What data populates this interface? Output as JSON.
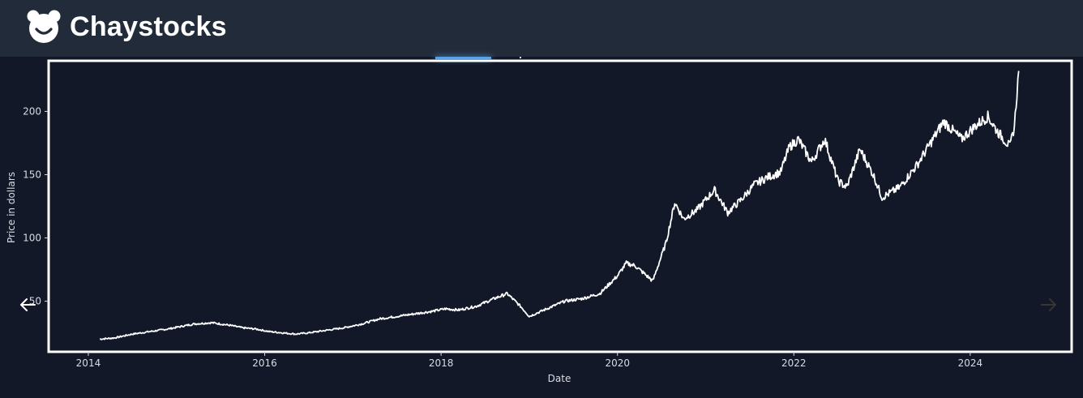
{
  "header": {
    "brand_name": "Chaystocks",
    "logo_icon": "bear-icon"
  },
  "carousel": {
    "prev_icon": "arrow-left-icon",
    "next_icon": "arrow-right-icon"
  },
  "chart_data": {
    "type": "line",
    "xlabel": "Date",
    "ylabel": "Price in dollars",
    "xlim": [
      2013.55,
      2025.15
    ],
    "ylim": [
      10,
      240
    ],
    "x_ticks": [
      2014,
      2016,
      2018,
      2020,
      2022,
      2024
    ],
    "y_ticks": [
      50,
      100,
      150,
      200
    ],
    "grid": false,
    "line_color": "#ffffff",
    "background_color": "#121828",
    "series": [
      {
        "x": [
          2014.13,
          2014.3,
          2014.5,
          2014.7,
          2014.9,
          2015.05,
          2015.2,
          2015.4,
          2015.6,
          2015.75,
          2015.9,
          2016.05,
          2016.2,
          2016.35,
          2016.5,
          2016.7,
          2016.9,
          2017.1,
          2017.3,
          2017.5,
          2017.7,
          2017.9,
          2018.05,
          2018.2,
          2018.4,
          2018.6,
          2018.75,
          2018.9,
          2019.0,
          2019.2,
          2019.4,
          2019.6,
          2019.8,
          2020.0,
          2020.1,
          2020.2,
          2020.4,
          2020.55,
          2020.65,
          2020.75,
          2020.9,
          2021.1,
          2021.25,
          2021.4,
          2021.55,
          2021.7,
          2021.85,
          2021.95,
          2022.05,
          2022.2,
          2022.35,
          2022.5,
          2022.6,
          2022.75,
          2022.9,
          2023.0,
          2023.2,
          2023.4,
          2023.55,
          2023.7,
          2023.9,
          2024.05,
          2024.2,
          2024.3,
          2024.45,
          2024.5,
          2024.55
        ],
        "y": [
          20,
          21,
          24,
          26,
          28,
          30,
          32,
          33,
          31,
          29,
          28,
          26,
          25,
          24,
          25,
          27,
          29,
          32,
          36,
          38,
          40,
          42,
          44,
          43,
          46,
          52,
          56,
          46,
          38,
          44,
          50,
          52,
          56,
          70,
          80,
          78,
          66,
          96,
          128,
          115,
          122,
          138,
          120,
          130,
          142,
          148,
          152,
          172,
          178,
          160,
          178,
          145,
          140,
          170,
          150,
          132,
          140,
          158,
          175,
          192,
          178,
          188,
          196,
          185,
          172,
          188,
          232
        ]
      }
    ]
  }
}
